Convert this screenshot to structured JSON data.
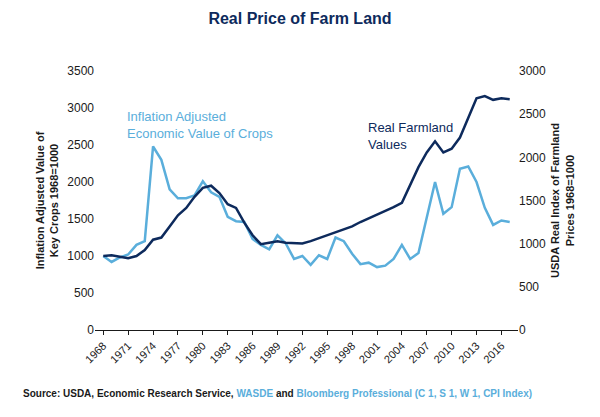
{
  "chart_data": {
    "type": "line",
    "title": "Real Price of Farm Land",
    "x": [
      1968,
      1969,
      1970,
      1971,
      1972,
      1973,
      1974,
      1975,
      1976,
      1977,
      1978,
      1979,
      1980,
      1981,
      1982,
      1983,
      1984,
      1985,
      1986,
      1987,
      1988,
      1989,
      1990,
      1991,
      1992,
      1993,
      1994,
      1995,
      1996,
      1997,
      1998,
      1999,
      2000,
      2001,
      2002,
      2003,
      2004,
      2005,
      2006,
      2007,
      2008,
      2009,
      2010,
      2011,
      2012,
      2013,
      2014,
      2015,
      2016,
      2017
    ],
    "xlim": [
      1967,
      2018
    ],
    "xticks": [
      1968,
      1971,
      1974,
      1977,
      1980,
      1983,
      1986,
      1989,
      1992,
      1995,
      1998,
      2001,
      2004,
      2007,
      2010,
      2013,
      2016
    ],
    "ylim": [
      0,
      3500
    ],
    "yticks": [
      0,
      500,
      1000,
      1500,
      2000,
      2500,
      3000,
      3500
    ],
    "y2lim": [
      0,
      3000
    ],
    "y2ticks": [
      0,
      500,
      1000,
      1500,
      2000,
      2500,
      3000
    ],
    "ylabel": "Inflation Adjusted Value of\nKey Crops 1968=1000",
    "y2label": "USDA Real Index of Farmland\nPrices 1968=1000",
    "grid": false,
    "series": [
      {
        "name": "Inflation Adjusted\nEconomic Value of Crops",
        "color": "#5aaedb",
        "axis": "y",
        "values": [
          1000,
          920,
          980,
          1020,
          1150,
          1200,
          2480,
          2300,
          1900,
          1780,
          1780,
          1820,
          2010,
          1860,
          1800,
          1530,
          1470,
          1460,
          1230,
          1150,
          1090,
          1280,
          1170,
          960,
          1000,
          880,
          1010,
          960,
          1250,
          1200,
          1030,
          890,
          910,
          850,
          870,
          960,
          1150,
          960,
          1040,
          1500,
          2000,
          1570,
          1660,
          2180,
          2210,
          2000,
          1650,
          1420,
          1480,
          1460
        ]
      },
      {
        "name": "Real Farmland\nValues",
        "color": "#0d2a5c",
        "axis": "y2",
        "values": [
          857,
          866,
          849,
          831,
          857,
          926,
          1046,
          1071,
          1200,
          1329,
          1414,
          1543,
          1646,
          1671,
          1586,
          1457,
          1414,
          1243,
          1097,
          994,
          1011,
          1029,
          1011,
          1003,
          1003,
          1029,
          1063,
          1097,
          1123,
          1166,
          1200,
          1251,
          1294,
          1329,
          1380,
          1423,
          1474,
          1671,
          1886,
          2057,
          2186,
          2057,
          2100,
          2229,
          2460,
          2683,
          2709,
          2666,
          2683,
          2674
        ]
      }
    ],
    "source": [
      {
        "text": "Source: USDA, Economic Research Service,",
        "color": "#1a1a1a"
      },
      {
        "text": "WASDE",
        "color": "#5aaedb"
      },
      {
        "text": "and",
        "color": "#1a1a1a"
      },
      {
        "text": "Bloomberg Professional (C 1, S 1, W 1, CPI Index)",
        "color": "#5aaedb"
      }
    ]
  }
}
